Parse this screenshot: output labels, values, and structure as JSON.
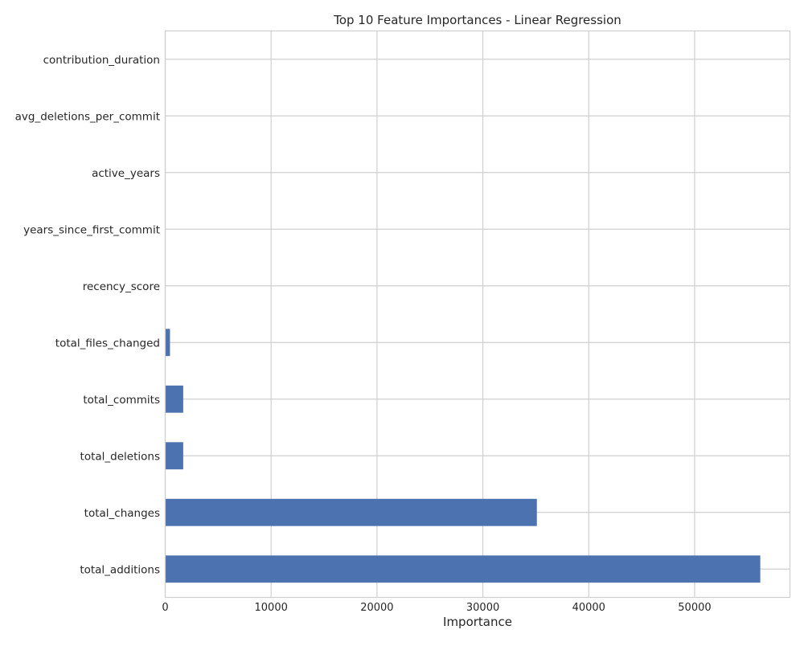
{
  "chart_data": {
    "type": "bar",
    "orientation": "horizontal",
    "title": "Top 10 Feature Importances - Linear Regression",
    "xlabel": "Importance",
    "ylabel": "",
    "xlim": [
      0,
      59000
    ],
    "xticks": [
      0,
      10000,
      20000,
      30000,
      40000,
      50000
    ],
    "xtick_labels": [
      "0",
      "10000",
      "20000",
      "30000",
      "40000",
      "50000"
    ],
    "grid": true,
    "bar_color": "#4c72b0",
    "categories": [
      "total_additions",
      "total_changes",
      "total_deletions",
      "total_commits",
      "total_files_changed",
      "recency_score",
      "years_since_first_commit",
      "active_years",
      "avg_deletions_per_commit",
      "contribution_duration"
    ],
    "values": [
      56200,
      35100,
      1700,
      1700,
      450,
      0,
      0,
      0,
      0,
      0
    ]
  }
}
